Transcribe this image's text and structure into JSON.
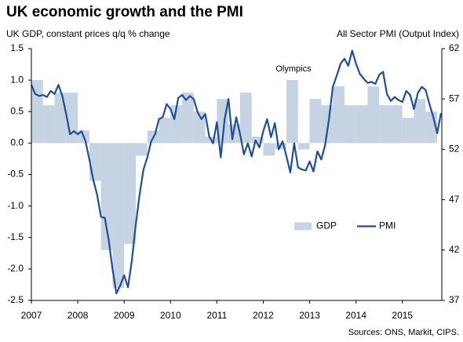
{
  "chart_data": {
    "type": "combo",
    "title": "UK economic growth and the PMI",
    "ylabel": "UK GDP, constant prices q/q % change",
    "y2label": "All Sector PMI (Output Index)",
    "annotation": "Olympics",
    "source": "Sources: ONS, Markit, CIPS.",
    "legend": "center right",
    "grid": false,
    "xlim": [
      2007,
      2015.85
    ],
    "xticks": [
      2007,
      2008,
      2009,
      2010,
      2011,
      2012,
      2013,
      2014,
      2015
    ],
    "ylim": [
      -2.5,
      1.5
    ],
    "yticks": [
      1.5,
      {
        "value": 1.0,
        "label": "1.0"
      },
      0.5,
      {
        "value": 0.0,
        "label": "0.0"
      },
      -0.5,
      {
        "value": -1.0,
        "label": "-1.0"
      },
      -1.5,
      {
        "value": -2.0,
        "label": "-2.0"
      },
      -2.5
    ],
    "y2lim": [
      37,
      62
    ],
    "y2ticks": [
      37,
      42,
      47,
      52,
      57,
      62
    ],
    "series": [
      {
        "name": "GDP",
        "type": "bar",
        "color": "#c5d3e2",
        "x": [
          2007,
          2007.25,
          2007.5,
          2007.75,
          2008,
          2008.25,
          2008.5,
          2008.75,
          2009,
          2009.25,
          2009.5,
          2009.75,
          2010,
          2010.25,
          2010.5,
          2010.75,
          2011,
          2011.25,
          2011.5,
          2011.75,
          2012,
          2012.25,
          2012.5,
          2012.75,
          2013,
          2013.25,
          2013.5,
          2013.75,
          2014,
          2014.25,
          2014.5,
          2014.75,
          2015,
          2015.25,
          2015.5
        ],
        "values": [
          1.0,
          0.6,
          0.8,
          0.8,
          0.2,
          -0.6,
          -1.7,
          -2.3,
          -1.6,
          -0.2,
          0.2,
          0.4,
          0.6,
          0.8,
          0.5,
          0.1,
          0.7,
          0.3,
          0.8,
          0.1,
          -0.2,
          -0.1,
          1.0,
          -0.1,
          0.7,
          0.6,
          0.9,
          0.6,
          0.6,
          0.9,
          0.6,
          0.6,
          0.4,
          0.7,
          0.5
        ]
      },
      {
        "name": "PMI",
        "type": "line",
        "color": "#1f4e96",
        "axis": "y2",
        "x": [
          2007,
          2007.083,
          2007.167,
          2007.25,
          2007.333,
          2007.417,
          2007.5,
          2007.583,
          2007.667,
          2007.75,
          2007.833,
          2007.917,
          2008,
          2008.083,
          2008.167,
          2008.25,
          2008.333,
          2008.417,
          2008.5,
          2008.583,
          2008.667,
          2008.75,
          2008.833,
          2008.917,
          2009,
          2009.083,
          2009.167,
          2009.25,
          2009.333,
          2009.417,
          2009.5,
          2009.583,
          2009.667,
          2009.75,
          2009.833,
          2009.917,
          2010,
          2010.083,
          2010.167,
          2010.25,
          2010.333,
          2010.417,
          2010.5,
          2010.583,
          2010.667,
          2010.75,
          2010.833,
          2010.917,
          2011,
          2011.083,
          2011.167,
          2011.25,
          2011.333,
          2011.417,
          2011.5,
          2011.583,
          2011.667,
          2011.75,
          2011.833,
          2011.917,
          2012,
          2012.083,
          2012.167,
          2012.25,
          2012.333,
          2012.417,
          2012.5,
          2012.583,
          2012.667,
          2012.75,
          2012.833,
          2012.917,
          2013,
          2013.083,
          2013.167,
          2013.25,
          2013.333,
          2013.417,
          2013.5,
          2013.583,
          2013.667,
          2013.75,
          2013.833,
          2013.917,
          2014,
          2014.083,
          2014.167,
          2014.25,
          2014.333,
          2014.417,
          2014.5,
          2014.583,
          2014.667,
          2014.75,
          2014.833,
          2014.917,
          2015,
          2015.083,
          2015.167,
          2015.25,
          2015.333,
          2015.417,
          2015.5,
          2015.583,
          2015.667,
          2015.75,
          2015.833
        ],
        "values": [
          58.4,
          57.5,
          57.3,
          57.4,
          57.2,
          57.8,
          57.5,
          58.4,
          57.3,
          55.5,
          53.5,
          53.8,
          53.5,
          53.8,
          52.8,
          51.0,
          49.0,
          47.5,
          45.3,
          45.2,
          43.0,
          40.1,
          37.7,
          38.5,
          39.5,
          38.3,
          41.0,
          44.5,
          47.5,
          50.0,
          51.2,
          52.8,
          53.5,
          55.0,
          55.2,
          56.5,
          56.0,
          55.0,
          57.1,
          57.4,
          56.9,
          57.3,
          57.0,
          55.7,
          55.0,
          55.5,
          53.3,
          52.6,
          54.7,
          51.2,
          55.0,
          57.0,
          53.0,
          55.2,
          53.5,
          51.5,
          52.6,
          51.3,
          52.9,
          52.2,
          53.8,
          55.0,
          53.2,
          54.6,
          52.0,
          52.8,
          51.3,
          49.7,
          52.6,
          50.2,
          50.0,
          49.9,
          50.8,
          49.8,
          51.8,
          51.0,
          52.4,
          55.0,
          58.2,
          59.3,
          60.5,
          61.0,
          60.3,
          61.8,
          60.5,
          59.5,
          59.0,
          58.6,
          58.7,
          58.5,
          59.4,
          59.7,
          57.5,
          56.8,
          57.2,
          56.9,
          56.7,
          57.8,
          57.4,
          56.0,
          57.6,
          58.2,
          57.9,
          56.5,
          55.2,
          53.6,
          55.6
        ]
      }
    ]
  }
}
